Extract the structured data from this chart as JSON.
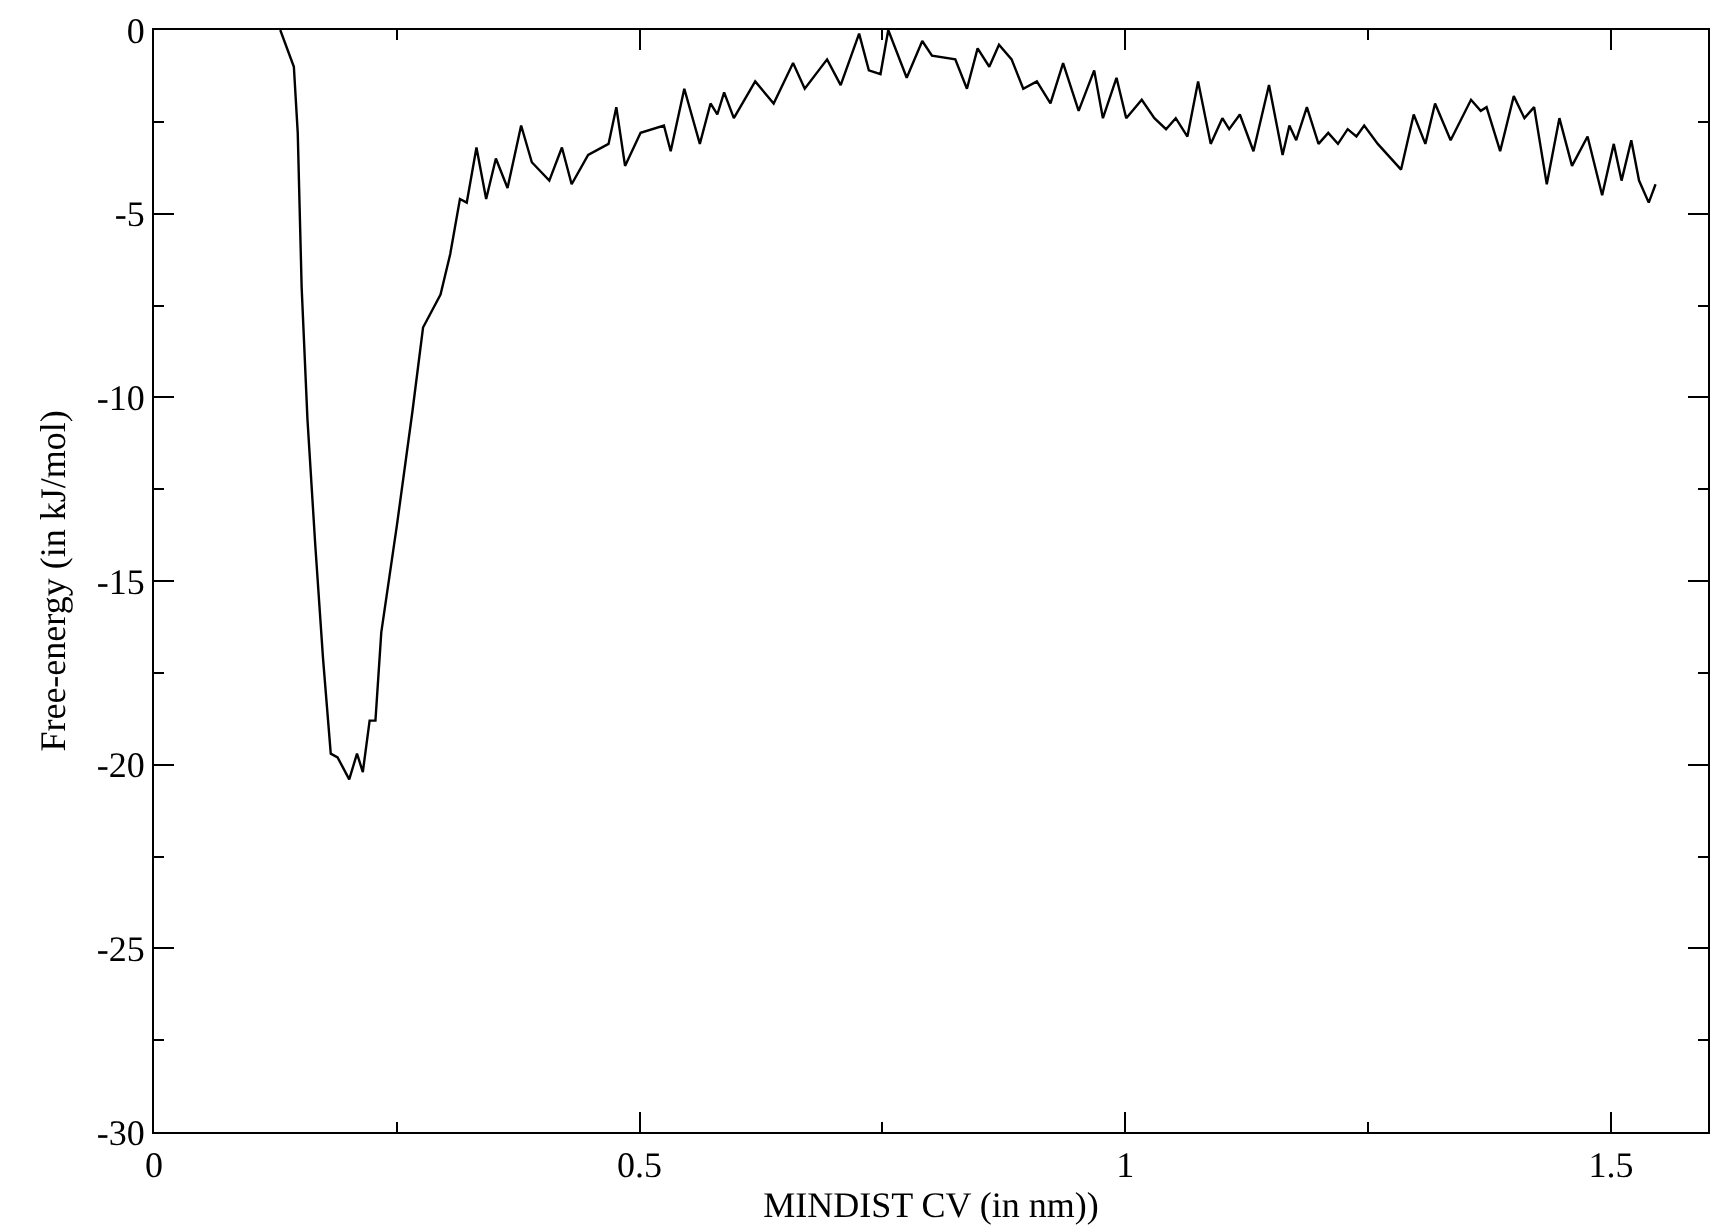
{
  "chart_data": {
    "type": "line",
    "xlabel": "MINDIST CV (in nm))",
    "ylabel": "Free-energy (in kJ/mol)",
    "xlim": [
      0,
      1.6
    ],
    "xticks": [
      0,
      0.5,
      1,
      1.5
    ],
    "ylim": [
      -30,
      0
    ],
    "yticks": [
      -30,
      -25,
      -20,
      -15,
      -10,
      -5,
      0
    ],
    "grid": false,
    "marker": "none",
    "line_style": "solid",
    "series": [
      {
        "color": "#000000",
        "x": [
          0.13,
          0.144,
          0.148,
          0.152,
          0.158,
          0.166,
          0.174,
          0.182,
          0.189,
          0.201,
          0.209,
          0.215,
          0.222,
          0.228,
          0.234,
          0.25,
          0.266,
          0.277,
          0.295,
          0.305,
          0.315,
          0.322,
          0.332,
          0.342,
          0.352,
          0.364,
          0.378,
          0.389,
          0.407,
          0.42,
          0.43,
          0.447,
          0.468,
          0.476,
          0.485,
          0.501,
          0.525,
          0.532,
          0.546,
          0.562,
          0.573,
          0.58,
          0.587,
          0.597,
          0.619,
          0.638,
          0.658,
          0.67,
          0.693,
          0.707,
          0.726,
          0.736,
          0.748,
          0.756,
          0.775,
          0.791,
          0.801,
          0.825,
          0.837,
          0.848,
          0.86,
          0.87,
          0.883,
          0.895,
          0.909,
          0.923,
          0.936,
          0.952,
          0.968,
          0.977,
          0.991,
          1.001,
          1.017,
          1.03,
          1.042,
          1.052,
          1.064,
          1.075,
          1.088,
          1.1,
          1.107,
          1.118,
          1.132,
          1.148,
          1.162,
          1.169,
          1.176,
          1.187,
          1.199,
          1.209,
          1.219,
          1.229,
          1.238,
          1.246,
          1.26,
          1.284,
          1.297,
          1.309,
          1.319,
          1.335,
          1.356,
          1.366,
          1.372,
          1.386,
          1.4,
          1.411,
          1.421,
          1.434,
          1.447,
          1.46,
          1.476,
          1.491,
          1.503,
          1.511,
          1.521,
          1.529,
          1.539,
          1.546
        ],
        "values": [
          0,
          -1.0,
          -2.8,
          -7.0,
          -10.6,
          -14.0,
          -17.1,
          -19.7,
          -19.8,
          -20.4,
          -19.7,
          -20.2,
          -18.8,
          -18.8,
          -16.4,
          -13.5,
          -10.4,
          -8.1,
          -7.2,
          -6.1,
          -4.6,
          -4.7,
          -3.2,
          -4.6,
          -3.5,
          -4.3,
          -2.6,
          -3.6,
          -4.1,
          -3.2,
          -4.2,
          -3.4,
          -3.1,
          -2.1,
          -3.7,
          -2.8,
          -2.6,
          -3.3,
          -1.6,
          -3.1,
          -2.0,
          -2.3,
          -1.7,
          -2.4,
          -1.4,
          -2.0,
          -0.9,
          -1.6,
          -0.8,
          -1.5,
          -0.1,
          -1.1,
          -1.2,
          0,
          -1.3,
          -0.3,
          -0.7,
          -0.8,
          -1.6,
          -0.5,
          -1.0,
          -0.4,
          -0.8,
          -1.6,
          -1.4,
          -2.0,
          -0.9,
          -2.2,
          -1.1,
          -2.4,
          -1.3,
          -2.4,
          -1.9,
          -2.4,
          -2.7,
          -2.4,
          -2.9,
          -1.4,
          -3.1,
          -2.4,
          -2.7,
          -2.3,
          -3.3,
          -1.5,
          -3.4,
          -2.6,
          -3.0,
          -2.1,
          -3.1,
          -2.8,
          -3.1,
          -2.7,
          -2.9,
          -2.6,
          -3.1,
          -3.8,
          -2.3,
          -3.1,
          -2.0,
          -3.0,
          -1.9,
          -2.2,
          -2.1,
          -3.3,
          -1.8,
          -2.4,
          -2.1,
          -4.2,
          -2.4,
          -3.7,
          -2.9,
          -4.5,
          -3.1,
          -4.1,
          -3.0,
          -4.1,
          -4.7,
          -4.2
        ]
      }
    ]
  }
}
